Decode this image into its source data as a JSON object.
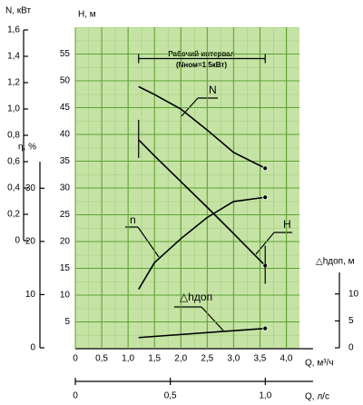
{
  "chart_data": {
    "type": "line",
    "xlabel": "Q, м³/ч",
    "xlim": [
      0,
      4.25
    ],
    "xticks": [
      0,
      {
        "value": 0.5,
        "label": "0,5"
      },
      {
        "value": 1.0,
        "label": "1,0"
      },
      {
        "value": 1.5,
        "label": "1,5"
      },
      {
        "value": 2.0,
        "label": "2,0"
      },
      {
        "value": 2.5,
        "label": "2,5"
      },
      {
        "value": 3.0,
        "label": "3,0"
      },
      {
        "value": 3.5,
        "label": "3,5"
      },
      {
        "value": 4.0,
        "label": "4,0"
      }
    ],
    "x2label": "Q, л/с",
    "x2lim": [
      0,
      1.18
    ],
    "x2ticks": [
      0,
      {
        "value": 0.5,
        "label": "0,5"
      },
      {
        "value": 1.0,
        "label": "1,0"
      }
    ],
    "ylabel": "H, м",
    "ylim": [
      0,
      60
    ],
    "yticks": [
      5,
      10,
      15,
      20,
      25,
      30,
      35,
      40,
      45,
      50,
      55
    ],
    "axes": {
      "n": {
        "label": "N, кВт",
        "lim": [
          0,
          1.6
        ],
        "ticks": [
          0,
          {
            "value": 0.2,
            "label": "0,2"
          },
          {
            "value": 0.4,
            "label": "0,4"
          },
          {
            "value": 0.6,
            "label": "0,6"
          },
          {
            "value": 0.8,
            "label": "0,8"
          },
          {
            "value": 1.0,
            "label": "1,0"
          },
          {
            "value": 1.2,
            "label": "1,2"
          },
          {
            "value": 1.4,
            "label": "1,4"
          },
          {
            "value": 1.6,
            "label": "1,6"
          }
        ]
      },
      "eta": {
        "label": "η, %",
        "lim": [
          0,
          35
        ],
        "ticks": [
          0,
          10,
          20,
          30
        ]
      },
      "dh": {
        "label": "△hдоп, м",
        "lim": [
          0,
          14
        ],
        "ticks": [
          0,
          5,
          10
        ]
      }
    },
    "grid": true,
    "series": [
      {
        "name": "H",
        "axis": "y",
        "color": "#000000",
        "x": [
          1.2,
          1.5,
          2.0,
          2.5,
          3.0,
          3.6
        ],
        "values": [
          39,
          36,
          31.2,
          26.4,
          21.5,
          15.5
        ]
      },
      {
        "name": "N",
        "axis": "n",
        "color": "#000000",
        "x": [
          1.2,
          1.5,
          2.0,
          2.5,
          3.0,
          3.6
        ],
        "values": [
          1.17,
          1.11,
          1.0,
          0.84,
          0.67,
          0.55
        ]
      },
      {
        "name": "n",
        "axis": "eta",
        "color": "#000000",
        "x": [
          1.2,
          1.5,
          2.0,
          2.5,
          3.0,
          3.6
        ],
        "values": [
          11,
          16,
          20.5,
          24.5,
          27.5,
          28.3
        ]
      },
      {
        "name": "△hдоп",
        "axis": "dh",
        "color": "#000000",
        "x": [
          1.2,
          3.6
        ],
        "values": [
          1.9,
          3.6
        ]
      }
    ],
    "interval": {
      "label": "Рабочий интервал",
      "note": "(Nном=1,5кВт)",
      "q": [
        1.2,
        3.6
      ]
    }
  }
}
